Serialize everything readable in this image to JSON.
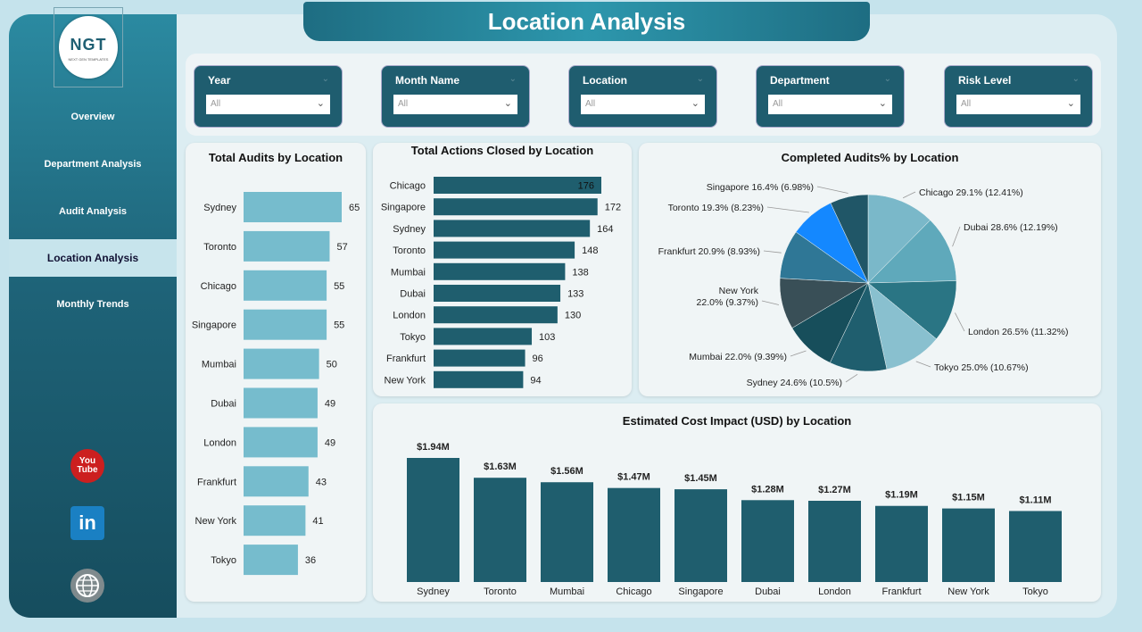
{
  "page": {
    "title": "Location Analysis"
  },
  "logo": {
    "text_main": "NGT",
    "text_sub": "NEXT GEN TEMPLATES"
  },
  "sidebar": {
    "items": [
      {
        "label": "Overview",
        "active": false
      },
      {
        "label": "Department Analysis",
        "active": false
      },
      {
        "label": "Audit Analysis",
        "active": false
      },
      {
        "label": "Location Analysis",
        "active": true
      },
      {
        "label": "Monthly Trends",
        "active": false
      }
    ],
    "social": [
      {
        "name": "youtube-icon",
        "label": "You Tube"
      },
      {
        "name": "linkedin-icon",
        "label": "in"
      },
      {
        "name": "website-icon",
        "label": "WWW"
      }
    ]
  },
  "filters": [
    {
      "label": "Year",
      "value": "All"
    },
    {
      "label": "Month Name",
      "value": "All"
    },
    {
      "label": "Location",
      "value": "All"
    },
    {
      "label": "Department",
      "value": "All"
    },
    {
      "label": "Risk Level",
      "value": "All"
    }
  ],
  "chart_data": [
    {
      "type": "bar",
      "orientation": "horizontal",
      "title": "Total Audits by Location",
      "categories": [
        "Sydney",
        "Toronto",
        "Chicago",
        "Singapore",
        "Mumbai",
        "Dubai",
        "London",
        "Frankfurt",
        "New York",
        "Tokyo"
      ],
      "values": [
        65,
        57,
        55,
        55,
        50,
        49,
        49,
        43,
        41,
        36
      ],
      "color": "#76bccd"
    },
    {
      "type": "bar",
      "orientation": "horizontal",
      "title": "Total Actions Closed by Location",
      "categories": [
        "Chicago",
        "Singapore",
        "Sydney",
        "Toronto",
        "Mumbai",
        "Dubai",
        "London",
        "Tokyo",
        "Frankfurt",
        "New York"
      ],
      "values": [
        176,
        172,
        164,
        148,
        138,
        133,
        130,
        103,
        96,
        94
      ],
      "color": "#1f5e6e"
    },
    {
      "type": "pie",
      "title": "Completed Audits% by Location",
      "slices": [
        {
          "name": "Chicago",
          "value": 12.41,
          "label": "Chicago 29.1% (12.41%)",
          "color": "#7ab8c9"
        },
        {
          "name": "Dubai",
          "value": 12.19,
          "label": "Dubai 28.6% (12.19%)",
          "color": "#5fa9bb"
        },
        {
          "name": "London",
          "value": 11.32,
          "label": "London 26.5% (11.32%)",
          "color": "#2a7584"
        },
        {
          "name": "Tokyo",
          "value": 10.67,
          "label": "Tokyo 25.0% (10.67%)",
          "color": "#89c0cf"
        },
        {
          "name": "Sydney",
          "value": 10.5,
          "label": "Sydney 24.6% (10.5%)",
          "color": "#1f5e6e"
        },
        {
          "name": "Mumbai",
          "value": 9.39,
          "label": "Mumbai 22.0% (9.39%)",
          "color": "#174e5b"
        },
        {
          "name": "New York",
          "value": 9.37,
          "label": "New York\n22.0% (9.37%)",
          "color": "#394f57"
        },
        {
          "name": "Frankfurt",
          "value": 8.93,
          "label": "Frankfurt 20.9% (8.93%)",
          "color": "#2f7796"
        },
        {
          "name": "Toronto",
          "value": 8.23,
          "label": "Toronto 19.3% (8.23%)",
          "color": "#1488ff"
        },
        {
          "name": "Singapore",
          "value": 6.98,
          "label": "Singapore 16.4% (6.98%)",
          "color": "#205667"
        }
      ]
    },
    {
      "type": "bar",
      "orientation": "vertical",
      "title": "Estimated Cost Impact (USD) by Location",
      "categories": [
        "Sydney",
        "Toronto",
        "Mumbai",
        "Chicago",
        "Singapore",
        "Dubai",
        "London",
        "Frankfurt",
        "New York",
        "Tokyo"
      ],
      "values": [
        1.94,
        1.63,
        1.56,
        1.47,
        1.45,
        1.28,
        1.27,
        1.19,
        1.15,
        1.11
      ],
      "data_labels": [
        "$1.94M",
        "$1.63M",
        "$1.56M",
        "$1.47M",
        "$1.45M",
        "$1.28M",
        "$1.27M",
        "$1.19M",
        "$1.15M",
        "$1.11M"
      ],
      "color": "#1f5e6e"
    }
  ]
}
